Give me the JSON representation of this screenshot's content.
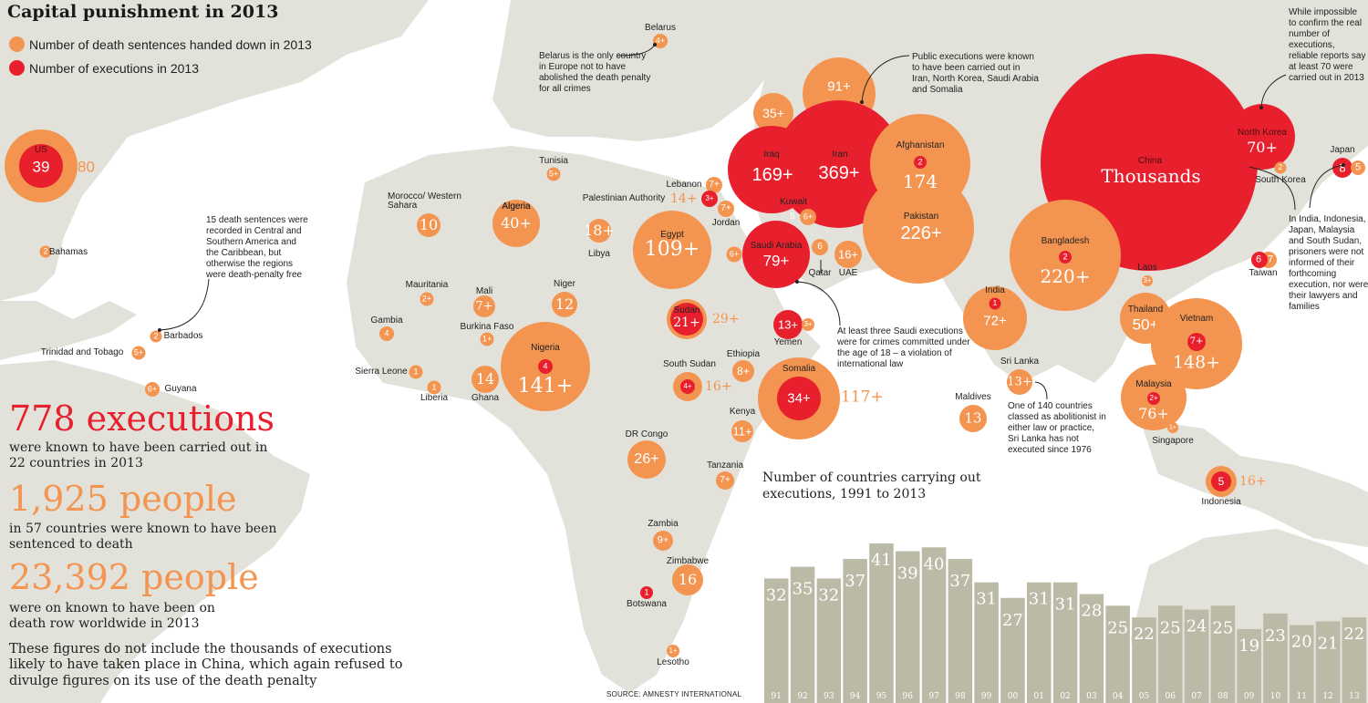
{
  "title": "Capital punishment in 2013",
  "legend": [
    {
      "label": "Number of death sentences handed down in 2013",
      "color": "#f39550"
    },
    {
      "label": "Number of executions in 2013",
      "color": "#e8202e"
    }
  ],
  "colors": {
    "sentences": "#f39550",
    "executions": "#e8202e",
    "land": "#e2e1da",
    "bars": "#bbbaa6"
  },
  "countries": [
    {
      "name": "US",
      "executions": "39",
      "sentences": "80"
    },
    {
      "name": "Bahamas",
      "sentences": "2"
    },
    {
      "name": "Barbados",
      "sentences": "2"
    },
    {
      "name": "Trinidad and Tobago",
      "sentences": "5+"
    },
    {
      "name": "Guyana",
      "sentences": "6+"
    },
    {
      "name": "Belarus",
      "sentences": "4+"
    },
    {
      "name": "Tunisia",
      "sentences": "5+"
    },
    {
      "name": "Morocco/ Western Sahara",
      "sentences": "10"
    },
    {
      "name": "Algeria",
      "sentences": "40+"
    },
    {
      "name": "Libya",
      "sentences": "18+"
    },
    {
      "name": "Egypt",
      "sentences": "109+"
    },
    {
      "name": "Lebanon",
      "sentences": "7+"
    },
    {
      "name": "Palestinian Authority",
      "executions": "3+",
      "sentences": "14+"
    },
    {
      "name": "Jordan",
      "sentences": "7+"
    },
    {
      "name": "Mauritania",
      "sentences": "2+"
    },
    {
      "name": "Mali",
      "sentences": "7+"
    },
    {
      "name": "Niger",
      "sentences": "12"
    },
    {
      "name": "Gambia",
      "sentences": "4"
    },
    {
      "name": "Burkina Faso",
      "sentences": "1+"
    },
    {
      "name": "Sierra Leone",
      "sentences": "1"
    },
    {
      "name": "Liberia",
      "sentences": "1"
    },
    {
      "name": "Ghana",
      "sentences": "14"
    },
    {
      "name": "Nigeria",
      "executions": "4",
      "sentences": "141+"
    },
    {
      "name": "Sudan",
      "executions": "21+",
      "sentences": "29+"
    },
    {
      "name": "South Sudan",
      "executions": "4+",
      "sentences": "16+"
    },
    {
      "name": "Ethiopia",
      "sentences": "8+"
    },
    {
      "name": "Somalia",
      "executions": "34+",
      "sentences": "117+"
    },
    {
      "name": "Kenya",
      "sentences": "11+"
    },
    {
      "name": "DR Congo",
      "sentences": "26+"
    },
    {
      "name": "Tanzania",
      "sentences": "7+"
    },
    {
      "name": "Zambia",
      "sentences": "9+"
    },
    {
      "name": "Zimbabwe",
      "sentences": "16"
    },
    {
      "name": "Botswana",
      "executions": "1"
    },
    {
      "name": "Lesotho",
      "sentences": "1+"
    },
    {
      "name": "Iraq",
      "executions": "169+",
      "sentences": "35+"
    },
    {
      "name": "Iran",
      "executions": "369+",
      "sentences": "91+"
    },
    {
      "name": "Kuwait",
      "executions": "5",
      "sentences": "6+"
    },
    {
      "name": "Saudi Arabia",
      "executions": "79+",
      "sentences": "6+"
    },
    {
      "name": "Qatar",
      "sentences": "6"
    },
    {
      "name": "UAE",
      "sentences": "16+"
    },
    {
      "name": "Yemen",
      "executions": "13+",
      "sentences": "3+"
    },
    {
      "name": "Afghanistan",
      "executions": "2",
      "sentences": "174"
    },
    {
      "name": "Pakistan",
      "sentences": "226+"
    },
    {
      "name": "India",
      "executions": "1",
      "sentences": "72+"
    },
    {
      "name": "Bangladesh",
      "executions": "2",
      "sentences": "220+"
    },
    {
      "name": "Sri Lanka",
      "sentences": "13+"
    },
    {
      "name": "Maldives",
      "sentences": "13"
    },
    {
      "name": "China",
      "executions": "Thousands"
    },
    {
      "name": "North Korea",
      "executions": "70+"
    },
    {
      "name": "South Korea",
      "sentences": "2"
    },
    {
      "name": "Japan",
      "executions": "8",
      "sentences": "5"
    },
    {
      "name": "Taiwan",
      "executions": "6",
      "sentences": "7"
    },
    {
      "name": "Laos",
      "sentences": "3+"
    },
    {
      "name": "Thailand",
      "sentences": "50+"
    },
    {
      "name": "Vietnam",
      "executions": "7+",
      "sentences": "148+"
    },
    {
      "name": "Malaysia",
      "executions": "2+",
      "sentences": "76+"
    },
    {
      "name": "Singapore",
      "sentences": "1+"
    },
    {
      "name": "Indonesia",
      "executions": "5",
      "sentences": "16+"
    }
  ],
  "notes": {
    "belarus": "Belarus is the only country in Europe not to have abolished the death penalty for all crimes",
    "public": "Public executions were known to have been carried out in Iran, North Korea, Saudi Arabia and Somalia",
    "north_korea": "While impossible to confirm the real number of executions, reliable reports say at least 70 were carried out in 2013",
    "americas": "15 death sentences were recorded in Central and Southern America and the Caribbean, but otherwise the regions were death-penalty free",
    "saudi": "At least three Saudi executions were for crimes committed under the age of 18 – a violation of international law",
    "sri_lanka": "One of 140 countries classed as abolitionist in either law or practice, Sri Lanka has not executed since 1976",
    "informed": "In India, Indonesia, Japan, Malaysia and South Sudan, prisoners were not informed of their forthcoming execution, nor were their lawyers and families"
  },
  "stats": {
    "executions_big": "778 executions",
    "executions_text": "were known to have been carried out in 22 countries in 2013",
    "sentenced_big": "1,925 people",
    "sentenced_text": "in 57 countries were known to have been sentenced to death",
    "deathrow_big": "23,392 people",
    "deathrow_text": "were on known to have been on death row worldwide in 2013",
    "china_note": "These figures do not include the thousands of executions likely to have taken place in China, which again refused to divulge figures on its use of the death penalty"
  },
  "source": "SOURCE: AMNESTY INTERNATIONAL",
  "chart_data": {
    "type": "bar",
    "title": "Number of countries carrying out executions, 1991 to 2013",
    "categories": [
      "91",
      "92",
      "93",
      "94",
      "95",
      "96",
      "97",
      "98",
      "99",
      "00",
      "01",
      "02",
      "03",
      "04",
      "05",
      "06",
      "07",
      "08",
      "09",
      "10",
      "11",
      "12",
      "13"
    ],
    "values": [
      32,
      35,
      32,
      37,
      41,
      39,
      40,
      37,
      31,
      27,
      31,
      31,
      28,
      25,
      22,
      25,
      24,
      25,
      19,
      23,
      20,
      21,
      22
    ],
    "xlabel": "",
    "ylabel": "",
    "ylim": [
      0,
      41
    ],
    "grid": false,
    "legend": "none"
  }
}
